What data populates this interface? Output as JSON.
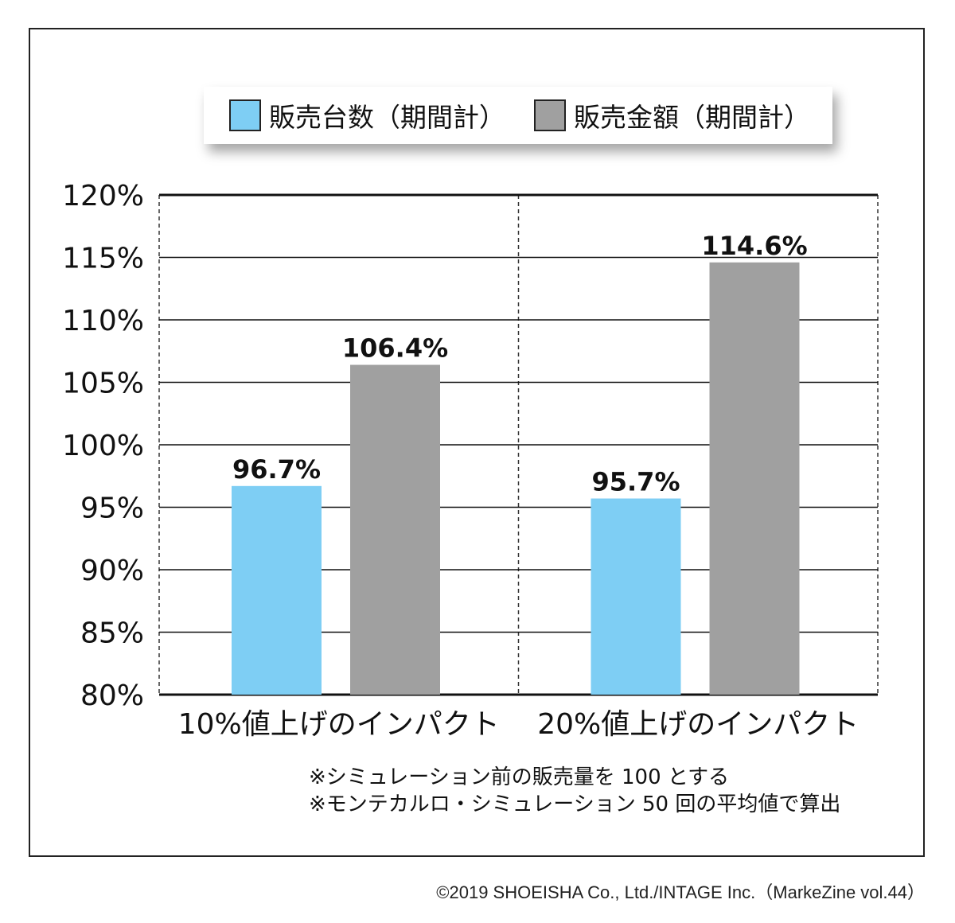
{
  "chart_data": {
    "type": "bar",
    "categories": [
      "10%値上げのインパクト",
      "20%値上げのインパクト"
    ],
    "series": [
      {
        "name": "販売台数（期間計）",
        "values": [
          96.7,
          95.7
        ],
        "color": "#7ecef4",
        "labels": [
          "96.7%",
          "95.7%"
        ]
      },
      {
        "name": "販売金額（期間計）",
        "values": [
          106.4,
          114.6
        ],
        "color": "#a0a0a0",
        "labels": [
          "106.4%",
          "114.6%"
        ]
      }
    ],
    "ylim": [
      80,
      120
    ],
    "yticks": [
      "80%",
      "85%",
      "90%",
      "95%",
      "100%",
      "105%",
      "110%",
      "115%",
      "120%"
    ],
    "ytick_values": [
      80,
      85,
      90,
      95,
      100,
      105,
      110,
      115,
      120
    ],
    "grid": true,
    "legend": "top"
  },
  "notes": [
    "※シミュレーション前の販売量を 100 とする",
    "※モンテカルロ・シミュレーション 50 回の平均値で算出"
  ],
  "credit": "©2019 SHOEISHA Co., Ltd./INTAGE Inc.（MarkeZine vol.44）"
}
